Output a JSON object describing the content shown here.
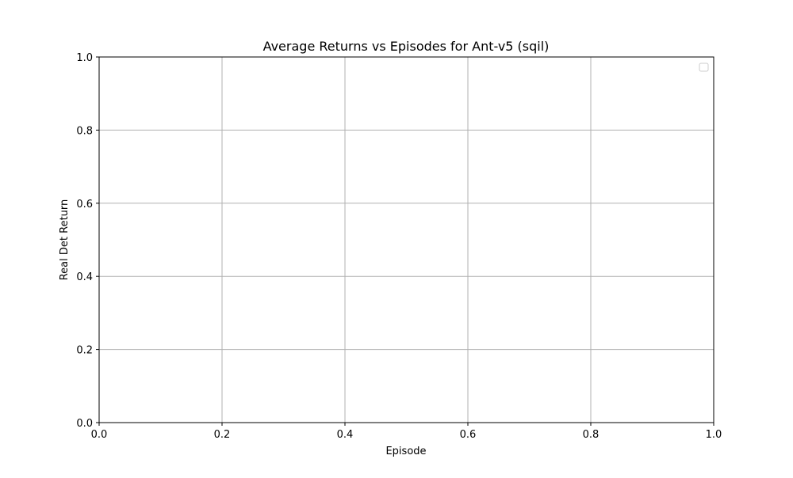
{
  "chart_data": {
    "type": "line",
    "title": "Average Returns vs Episodes for Ant-v5 (sqil)",
    "xlabel": "Episode",
    "ylabel": "Real Det Return",
    "xlim": [
      0.0,
      1.0
    ],
    "ylim": [
      0.0,
      1.0
    ],
    "xticks": [
      "0.0",
      "0.2",
      "0.4",
      "0.6",
      "0.8",
      "1.0"
    ],
    "yticks": [
      "0.0",
      "0.2",
      "0.4",
      "0.6",
      "0.8",
      "1.0"
    ],
    "grid": true,
    "legend": {
      "placement": "top-right",
      "entries": []
    },
    "series": [],
    "colors": {
      "grid": "#b0b0b0",
      "axes": "#000000",
      "legend_border": "#cccccc"
    }
  }
}
